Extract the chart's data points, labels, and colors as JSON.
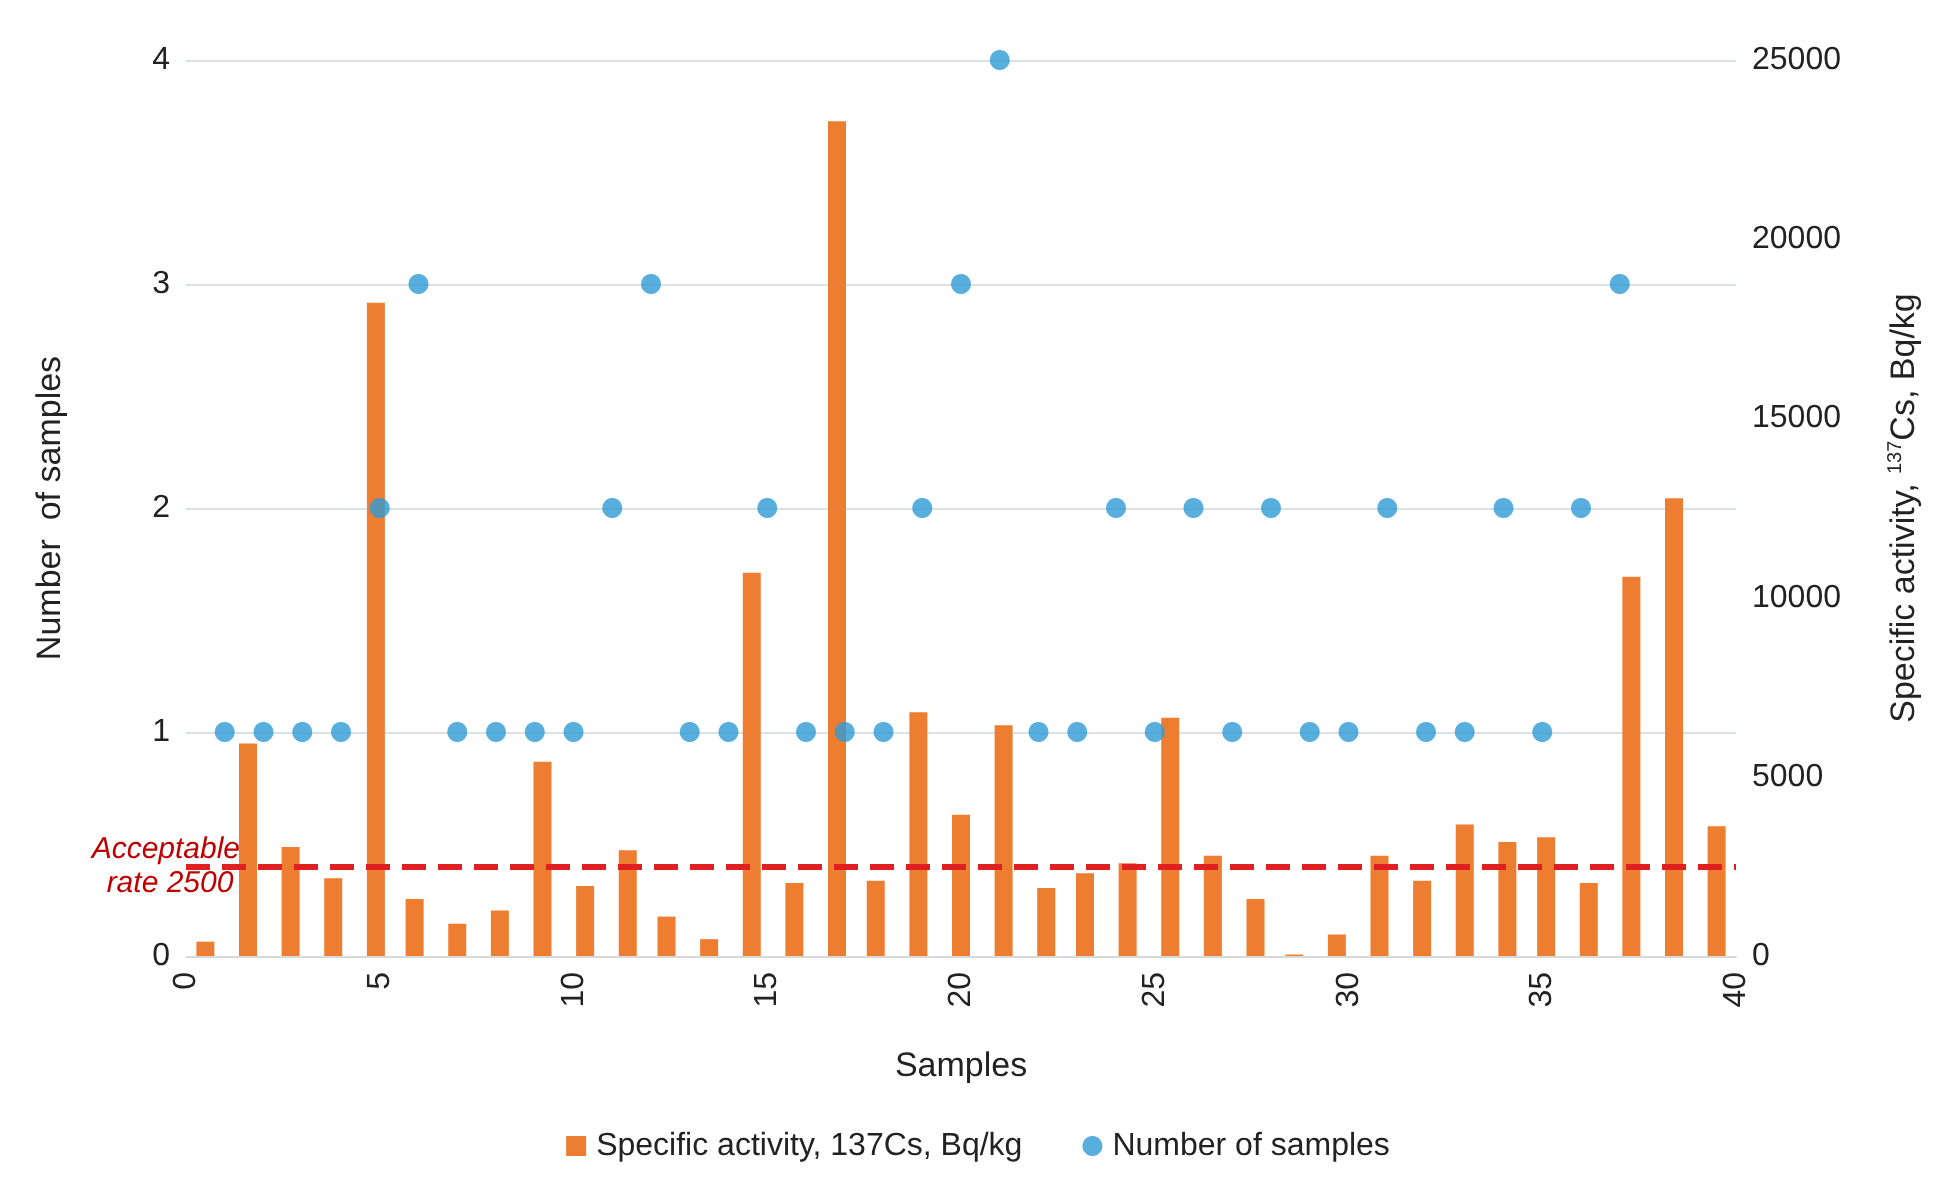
{
  "chart_data": {
    "type": "bar",
    "xlabel": "Samples",
    "ylabel": "Number  of samples",
    "y2label": "Specific activity, $^{137}$Cs, Bq/kg",
    "xlim": [
      0,
      40
    ],
    "xticks": [
      0,
      5,
      10,
      15,
      20,
      25,
      30,
      35,
      40
    ],
    "ylim": [
      0,
      4
    ],
    "yticks": [
      0,
      1,
      2,
      3,
      4
    ],
    "y2lim": [
      0,
      25000
    ],
    "y2ticks": [
      0,
      5000,
      10000,
      15000,
      20000,
      25000
    ],
    "series": [
      {
        "name": "Specific activity, 137Cs, Bq/kg",
        "axis": "y2",
        "color": "#ed7d31",
        "x": [
          0.5,
          1.6,
          2.7,
          3.8,
          4.9,
          5.9,
          7.0,
          8.1,
          9.2,
          10.3,
          11.4,
          12.4,
          13.5,
          14.6,
          15.7,
          16.8,
          17.8,
          18.9,
          20.0,
          21.1,
          22.2,
          23.2,
          24.3,
          25.4,
          26.5,
          27.6,
          28.6,
          29.7,
          30.8,
          31.9,
          33.0,
          34.1,
          35.1,
          36.2,
          37.3,
          38.4,
          39.5
        ],
        "values": [
          400,
          5930,
          3040,
          2170,
          18230,
          1590,
          900,
          1270,
          5420,
          1950,
          2950,
          1100,
          470,
          10690,
          2040,
          23290,
          2100,
          6800,
          3940,
          6440,
          1900,
          2310,
          2590,
          6650,
          2800,
          1590,
          40,
          600,
          2800,
          2100,
          3670,
          3180,
          3310,
          2040,
          10580,
          12770,
          3620
        ]
      },
      {
        "name": "Number of samples",
        "type": "scatter",
        "color": "#2e9bd6",
        "marker": "circle",
        "x": [
          1,
          2,
          3,
          4,
          5,
          6,
          7,
          8,
          9,
          10,
          11,
          12,
          13,
          14,
          15,
          16,
          17,
          18,
          19,
          20,
          21,
          22,
          23,
          24,
          25,
          26,
          27,
          28,
          29,
          30,
          31,
          32,
          33,
          34,
          35,
          36,
          37
        ],
        "values": [
          1,
          1,
          1,
          1,
          2,
          3,
          1,
          1,
          1,
          1,
          2,
          3,
          1,
          1,
          2,
          1,
          1,
          1,
          2,
          3,
          4,
          1,
          1,
          2,
          1,
          2,
          1,
          2,
          1,
          1,
          2,
          1,
          1,
          2,
          1,
          2,
          3
        ]
      }
    ],
    "ref_lines": [
      {
        "axis": "y2",
        "value": 2500,
        "label": "Acceptable rate 2500",
        "color": "#e02020",
        "line_style": "dashed"
      }
    ],
    "grid": "y",
    "legend": "bottom"
  }
}
